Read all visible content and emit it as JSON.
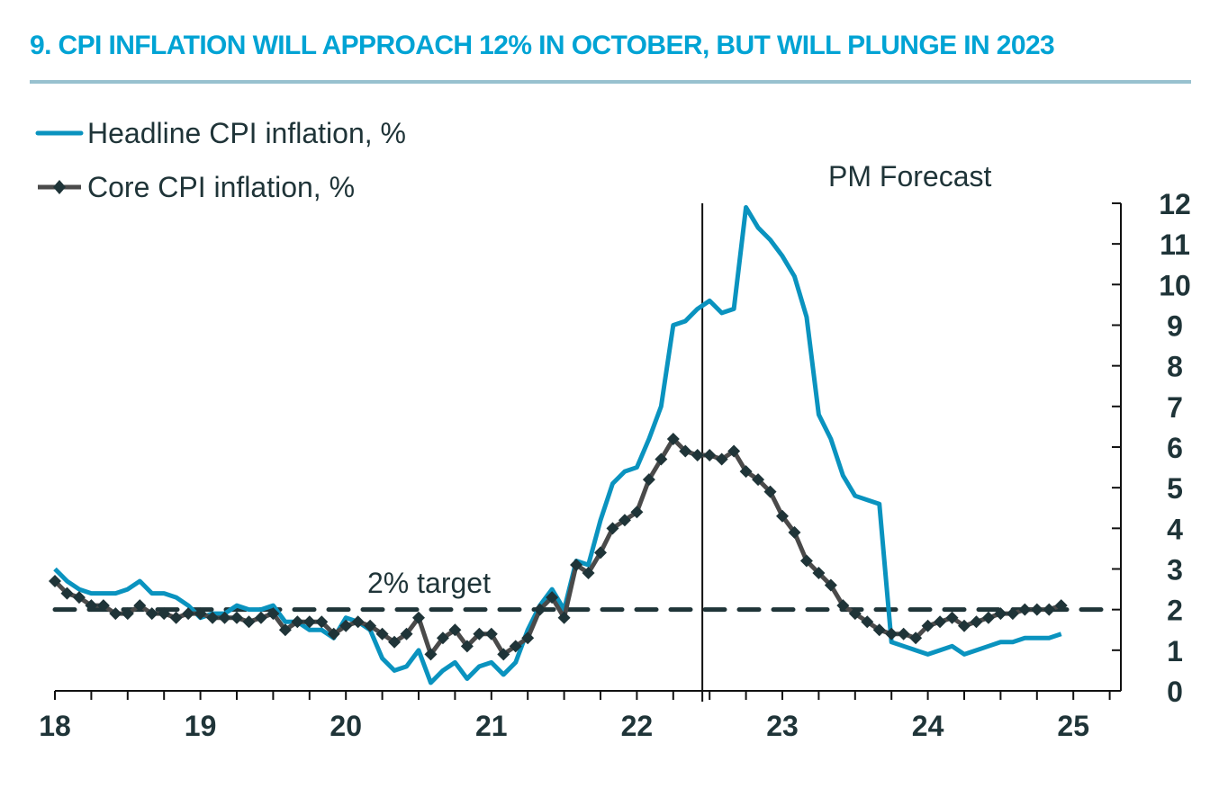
{
  "header": {
    "title": "9.  CPI INFLATION WILL APPROACH 12% IN OCTOBER, BUT WILL PLUNGE IN 2023"
  },
  "colors": {
    "title": "#00A3D4",
    "rule": "#98C1CF",
    "headline": "#0A93BF",
    "core_line": "#4A4A4A",
    "core_marker": "#1F3438",
    "target": "#1F3438",
    "axis": "#111111",
    "text": "#1F3438"
  },
  "chart_data": {
    "type": "line",
    "title": "9.  CPI INFLATION WILL APPROACH 12% IN OCTOBER, BUT WILL PLUNGE IN 2023",
    "xlabel": "",
    "ylabel": "",
    "x_start": "2018-01",
    "x_frequency": "monthly",
    "xlim": [
      18,
      25.4
    ],
    "ylim": [
      0,
      12
    ],
    "x_ticks": [
      "18",
      "19",
      "20",
      "21",
      "22",
      "23",
      "24",
      "25"
    ],
    "x_tick_values": [
      18,
      19,
      20,
      21,
      22,
      23,
      24,
      25
    ],
    "x_minor_tick_step": 0.25,
    "y_ticks": [
      "0",
      "1",
      "2",
      "3",
      "4",
      "5",
      "6",
      "7",
      "8",
      "9",
      "10",
      "11",
      "12"
    ],
    "y_axis_side": "right",
    "grid": false,
    "legend_position": "top-left",
    "series": [
      {
        "name": "Headline CPI inflation, %",
        "style": "line",
        "values": [
          3.0,
          2.7,
          2.5,
          2.4,
          2.4,
          2.4,
          2.5,
          2.7,
          2.4,
          2.4,
          2.3,
          2.1,
          1.8,
          1.9,
          1.9,
          2.1,
          2.0,
          2.0,
          2.1,
          1.7,
          1.7,
          1.5,
          1.5,
          1.3,
          1.8,
          1.7,
          1.5,
          0.8,
          0.5,
          0.6,
          1.0,
          0.2,
          0.5,
          0.7,
          0.3,
          0.6,
          0.7,
          0.4,
          0.7,
          1.5,
          2.1,
          2.5,
          2.0,
          3.2,
          3.1,
          4.2,
          5.1,
          5.4,
          5.5,
          6.2,
          7.0,
          9.0,
          9.1,
          9.4,
          9.6,
          9.3,
          9.4,
          11.9,
          11.4,
          11.1,
          10.7,
          10.2,
          9.2,
          6.8,
          6.2,
          5.3,
          4.8,
          4.7,
          4.6,
          1.2,
          1.1,
          1.0,
          0.9,
          1.0,
          1.1,
          0.9,
          1.0,
          1.1,
          1.2,
          1.2,
          1.3,
          1.3,
          1.3,
          1.4
        ]
      },
      {
        "name": "Core CPI inflation, %",
        "style": "line-with-diamond-markers",
        "values": [
          2.7,
          2.4,
          2.3,
          2.1,
          2.1,
          1.9,
          1.9,
          2.1,
          1.9,
          1.9,
          1.8,
          1.9,
          1.9,
          1.8,
          1.8,
          1.8,
          1.7,
          1.8,
          1.9,
          1.5,
          1.7,
          1.7,
          1.7,
          1.4,
          1.6,
          1.7,
          1.6,
          1.4,
          1.2,
          1.4,
          1.8,
          0.9,
          1.3,
          1.5,
          1.1,
          1.4,
          1.4,
          0.9,
          1.1,
          1.3,
          2.0,
          2.3,
          1.8,
          3.1,
          2.9,
          3.4,
          4.0,
          4.2,
          4.4,
          5.2,
          5.7,
          6.2,
          5.9,
          5.8,
          5.8,
          5.7,
          5.9,
          5.4,
          5.2,
          4.9,
          4.3,
          3.9,
          3.2,
          2.9,
          2.6,
          2.1,
          1.9,
          1.7,
          1.5,
          1.4,
          1.4,
          1.3,
          1.6,
          1.7,
          1.8,
          1.6,
          1.7,
          1.8,
          1.9,
          1.9,
          2.0,
          2.0,
          2.0,
          2.1
        ]
      }
    ],
    "reference_lines": [
      {
        "type": "horizontal",
        "value": 2,
        "style": "dashed",
        "label": "2% target"
      },
      {
        "type": "vertical",
        "value": 22.45,
        "style": "solid",
        "label": "PM Forecast"
      }
    ],
    "annotations": [
      {
        "text": "2% target",
        "near": "horizontal line at 2, around x=20.8"
      },
      {
        "text": "PM Forecast",
        "near": "top, right of forecast divider"
      }
    ]
  }
}
